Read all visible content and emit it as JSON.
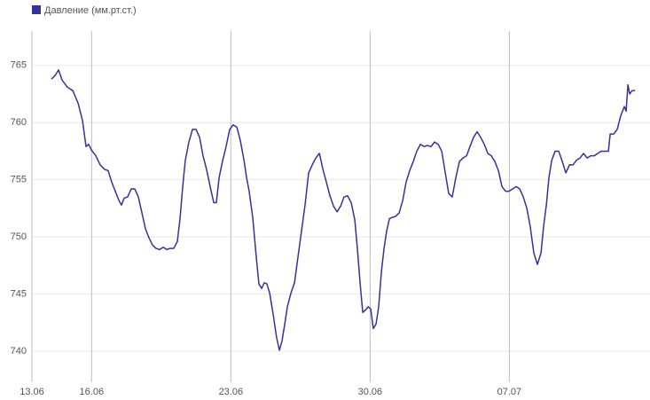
{
  "chart_data": {
    "type": "line",
    "xlim": [
      0,
      31.07
    ],
    "ylim": [
      737.3,
      768
    ],
    "xticks": [
      {
        "value": 0,
        "label": "13.06"
      },
      {
        "value": 3,
        "label": "16.06"
      },
      {
        "value": 10,
        "label": "23.06"
      },
      {
        "value": 17,
        "label": "30.06"
      },
      {
        "value": 24,
        "label": "07.07"
      }
    ],
    "yticks": [
      740,
      745,
      750,
      755,
      760,
      765
    ],
    "grid": true,
    "legend": "top-left",
    "x": [
      0.98,
      1.16,
      1.34,
      1.52,
      1.78,
      2.05,
      2.32,
      2.54,
      2.72,
      2.85,
      2.99,
      3.21,
      3.43,
      3.66,
      3.83,
      4.01,
      4.19,
      4.37,
      4.5,
      4.64,
      4.81,
      4.99,
      5.17,
      5.35,
      5.53,
      5.71,
      5.89,
      6.06,
      6.24,
      6.42,
      6.6,
      6.78,
      6.95,
      7.13,
      7.31,
      7.45,
      7.58,
      7.71,
      7.89,
      8.07,
      8.25,
      8.43,
      8.6,
      8.78,
      8.96,
      9.14,
      9.27,
      9.41,
      9.59,
      9.76,
      9.94,
      10.12,
      10.3,
      10.48,
      10.66,
      10.79,
      10.92,
      11.1,
      11.28,
      11.41,
      11.55,
      11.68,
      11.81,
      11.95,
      12.13,
      12.3,
      12.44,
      12.57,
      12.71,
      12.84,
      13.02,
      13.2,
      13.37,
      13.55,
      13.73,
      13.91,
      14.09,
      14.27,
      14.45,
      14.63,
      14.8,
      14.98,
      15.16,
      15.34,
      15.52,
      15.69,
      15.87,
      16.05,
      16.23,
      16.36,
      16.5,
      16.63,
      16.76,
      16.9,
      17.03,
      17.16,
      17.3,
      17.43,
      17.57,
      17.7,
      17.83,
      17.97,
      18.1,
      18.28,
      18.46,
      18.64,
      18.81,
      18.99,
      19.17,
      19.35,
      19.53,
      19.71,
      19.88,
      20.06,
      20.24,
      20.42,
      20.6,
      20.78,
      20.95,
      21.13,
      21.31,
      21.49,
      21.67,
      21.85,
      22.02,
      22.2,
      22.38,
      22.56,
      22.74,
      22.92,
      23.09,
      23.27,
      23.45,
      23.63,
      23.81,
      23.98,
      24.16,
      24.34,
      24.52,
      24.7,
      24.88,
      25.05,
      25.23,
      25.41,
      25.59,
      25.72,
      25.86,
      25.99,
      26.13,
      26.3,
      26.48,
      26.66,
      26.84,
      27.02,
      27.2,
      27.37,
      27.55,
      27.73,
      27.91,
      28.09,
      28.27,
      28.44,
      28.62,
      28.8,
      28.98,
      29.07,
      29.25,
      29.42,
      29.6,
      29.78,
      29.87,
      29.96,
      30.05,
      30.18,
      30.32
    ],
    "series": [
      {
        "name": "Давление (мм.рт.ст.)",
        "color": "#333399",
        "values": [
          763.8,
          764.1,
          764.6,
          763.7,
          763.1,
          762.8,
          761.7,
          760.2,
          757.9,
          758.1,
          757.6,
          757.1,
          756.3,
          755.9,
          755.8,
          754.8,
          754.0,
          753.2,
          752.8,
          753.4,
          753.5,
          754.2,
          754.2,
          753.5,
          752.1,
          750.7,
          749.9,
          749.3,
          749.0,
          748.9,
          749.1,
          748.9,
          749.0,
          749.0,
          749.6,
          751.7,
          754.4,
          756.7,
          758.3,
          759.4,
          759.4,
          758.7,
          757.1,
          755.9,
          754.4,
          753.0,
          753.0,
          755.2,
          756.7,
          757.9,
          759.4,
          759.8,
          759.6,
          758.4,
          756.7,
          755.2,
          754.0,
          751.7,
          748.2,
          745.9,
          745.5,
          746.0,
          745.9,
          745.1,
          743.2,
          741.2,
          740.1,
          740.9,
          742.4,
          743.9,
          745.1,
          746.0,
          748.2,
          750.5,
          752.8,
          755.6,
          756.3,
          756.9,
          757.3,
          755.9,
          754.8,
          753.6,
          752.7,
          752.2,
          752.7,
          753.5,
          753.6,
          753.0,
          751.5,
          749.0,
          745.9,
          743.4,
          743.6,
          743.9,
          743.7,
          742.0,
          742.4,
          743.9,
          747.0,
          749.0,
          750.5,
          751.6,
          751.7,
          751.8,
          752.1,
          753.2,
          754.8,
          755.8,
          756.6,
          757.5,
          758.1,
          757.9,
          758.0,
          757.9,
          758.3,
          758.1,
          757.5,
          755.6,
          753.8,
          753.5,
          755.2,
          756.6,
          756.9,
          757.1,
          757.9,
          758.7,
          759.2,
          758.7,
          758.1,
          757.3,
          757.1,
          756.6,
          755.8,
          754.4,
          754.0,
          754.0,
          754.2,
          754.4,
          754.2,
          753.5,
          752.5,
          750.9,
          748.6,
          747.6,
          748.6,
          750.9,
          752.8,
          755.2,
          756.7,
          757.5,
          757.5,
          756.6,
          755.6,
          756.3,
          756.3,
          756.7,
          756.9,
          757.3,
          756.9,
          757.1,
          757.1,
          757.3,
          757.5,
          757.5,
          757.5,
          759.0,
          759.0,
          759.4,
          760.6,
          761.4,
          761.0,
          763.3,
          762.5,
          762.8,
          762.8
        ]
      }
    ]
  }
}
